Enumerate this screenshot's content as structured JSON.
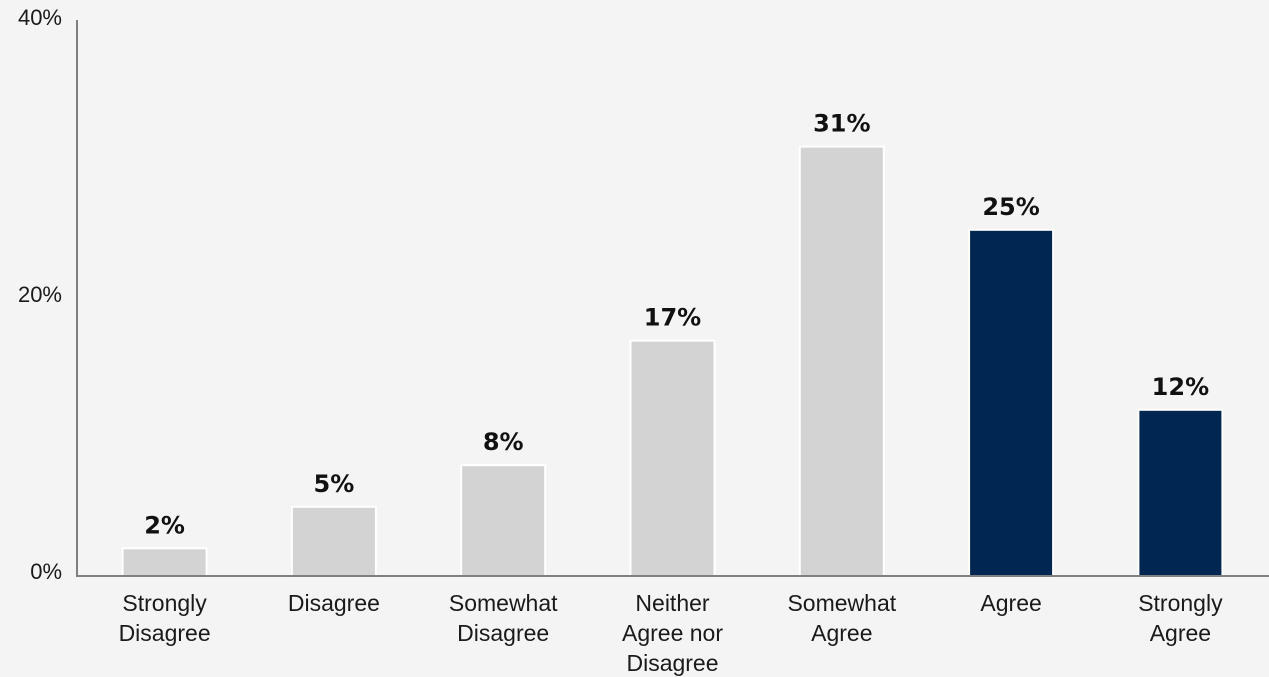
{
  "chart_data": {
    "type": "bar",
    "title": "",
    "xlabel": "",
    "ylabel": "",
    "ylim": [
      0,
      40
    ],
    "yticks": [
      0,
      20,
      40
    ],
    "ytick_labels": [
      "0%",
      "20%",
      "40%"
    ],
    "grid": false,
    "categories": [
      [
        "Strongly",
        "Disagree"
      ],
      [
        "Disagree"
      ],
      [
        "Somewhat",
        "Disagree"
      ],
      [
        "Neither",
        "Agree nor",
        "Disagree"
      ],
      [
        "Somewhat",
        "Agree"
      ],
      [
        "Agree"
      ],
      [
        "Strongly",
        "Agree"
      ]
    ],
    "values": [
      2,
      5,
      8,
      17,
      31,
      25,
      12
    ],
    "data_labels": [
      "2%",
      "5%",
      "8%",
      "17%",
      "31%",
      "25%",
      "12%"
    ],
    "bar_colors": [
      "#d3d3d3",
      "#d3d3d3",
      "#d3d3d3",
      "#d3d3d3",
      "#d3d3d3",
      "#002651",
      "#002651"
    ],
    "axis_color": "#808080",
    "background": "#f4f4f4"
  }
}
